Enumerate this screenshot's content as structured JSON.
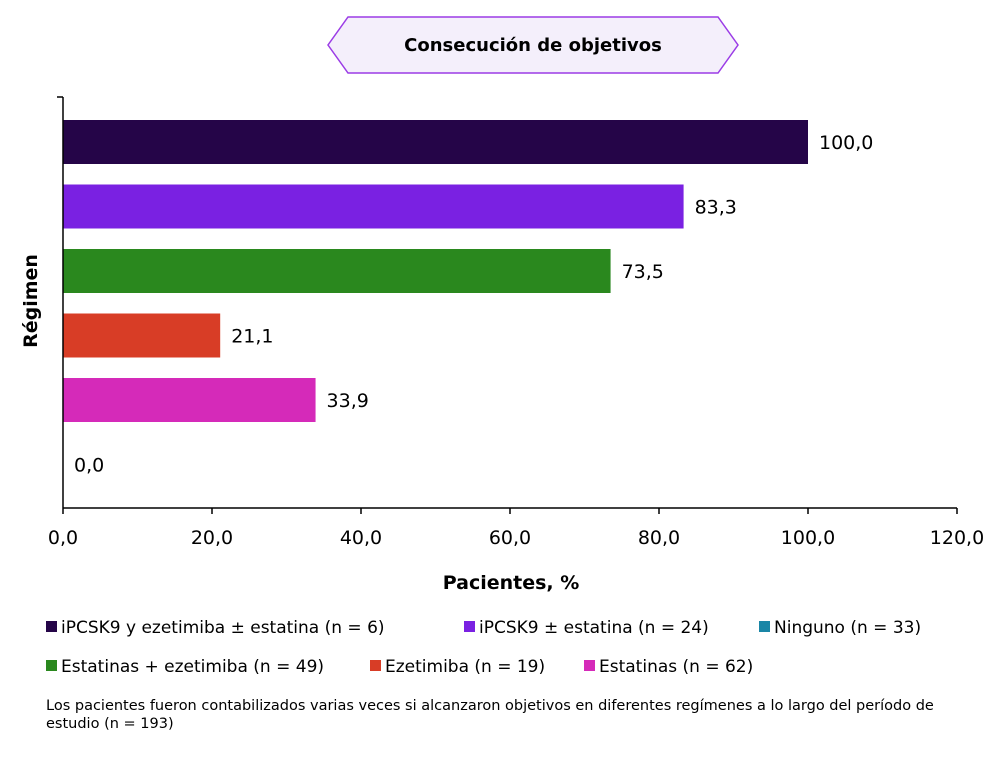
{
  "chart_data": {
    "type": "bar",
    "orientation": "horizontal",
    "title": "Consecución de objetivos",
    "xlabel": "Pacientes, %",
    "ylabel": "Régimen",
    "xlim": [
      0,
      120
    ],
    "xticks": [
      "0,0",
      "20,0",
      "40,0",
      "60,0",
      "80,0",
      "100,0",
      "120,0"
    ],
    "grid": false,
    "legend_position": "bottom",
    "series": [
      {
        "name": "iPCSK9 y ezetimiba ± estatina (n = 6)",
        "value": 100.0,
        "label": "100,0",
        "color": "#250548"
      },
      {
        "name": "iPCSK9 ± estatina (n = 24)",
        "value": 83.3,
        "label": "83,3",
        "color": "#7a21e2"
      },
      {
        "name": "Estatinas + ezetimiba (n = 49)",
        "value": 73.5,
        "label": "73,5",
        "color": "#2a881e"
      },
      {
        "name": "Ezetimiba (n = 19)",
        "value": 21.1,
        "label": "21,1",
        "color": "#d83d26"
      },
      {
        "name": "Estatinas (n = 62)",
        "value": 33.9,
        "label": "33,9",
        "color": "#d52ab9"
      },
      {
        "name": "Ninguno (n = 33)",
        "value": 0.0,
        "label": "0,0",
        "color": "#1a86a6"
      }
    ]
  },
  "legend_rows": [
    [
      {
        "label": "iPCSK9 y ezetimiba ± estatina (n = 6)",
        "color": "#250548"
      },
      {
        "label": "iPCSK9 ± estatina (n = 24)",
        "color": "#7a21e2"
      },
      {
        "label": "Ninguno (n = 33)",
        "color": "#1a86a6"
      }
    ],
    [
      {
        "label": "Estatinas + ezetimiba (n = 49)",
        "color": "#2a881e"
      },
      {
        "label": "Ezetimiba (n = 19)",
        "color": "#d83d26"
      },
      {
        "label": "Estatinas (n = 62)",
        "color": "#d52ab9"
      }
    ]
  ],
  "footnote": "Los pacientes fueron contabilizados varias veces si alcanzaron objetivos en diferentes regímenes a lo largo del período de estudio (n = 193)"
}
